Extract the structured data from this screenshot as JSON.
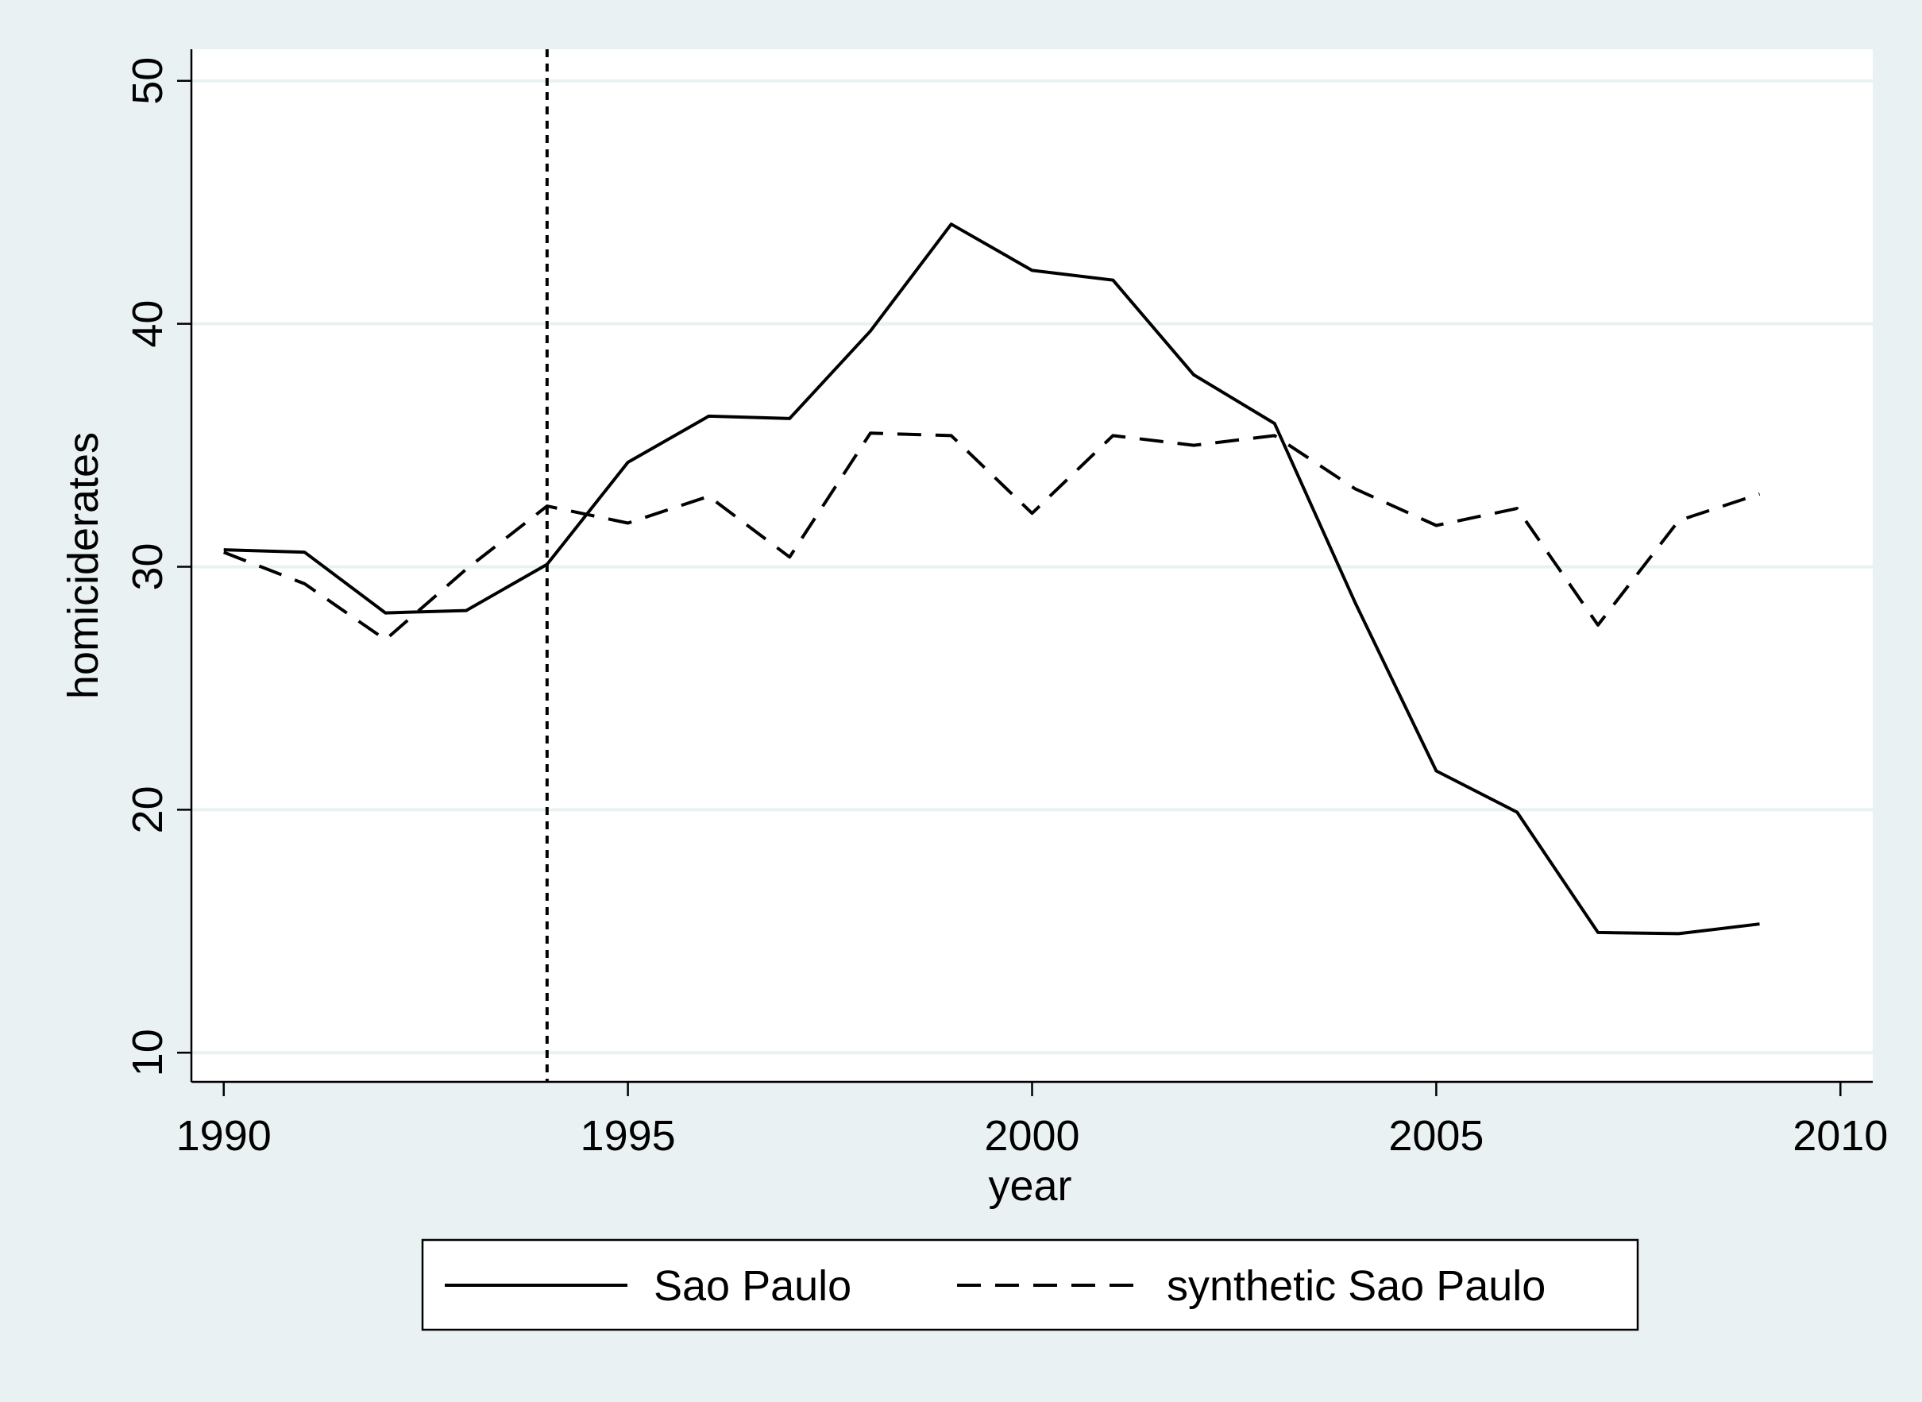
{
  "chart_data": {
    "type": "line",
    "title": "",
    "xlabel": "year",
    "ylabel": "homiciderates",
    "xlim": [
      1989.6,
      2010.4
    ],
    "ylim": [
      8.8,
      51.3
    ],
    "x_ticks": [
      1990,
      1995,
      2000,
      2005,
      2010
    ],
    "y_ticks": [
      10,
      20,
      30,
      40,
      50
    ],
    "grid": "horizontal",
    "legend_placement": "bottom",
    "reference_line": {
      "x": 1994,
      "style": "dotted"
    },
    "x": [
      1990,
      1991,
      1992,
      1993,
      1994,
      1995,
      1996,
      1997,
      1998,
      1999,
      2000,
      2001,
      2002,
      2003,
      2004,
      2005,
      2006,
      2007,
      2008,
      2009
    ],
    "series": [
      {
        "name": "Sao Paulo",
        "line_style": "solid",
        "values": [
          30.7,
          30.6,
          28.1,
          28.2,
          30.1,
          34.3,
          36.2,
          36.1,
          39.7,
          44.1,
          42.2,
          41.8,
          37.9,
          35.9,
          28.5,
          21.6,
          19.9,
          14.95,
          14.9,
          15.3
        ]
      },
      {
        "name": "synthetic Sao Paulo",
        "line_style": "dashed",
        "values": [
          30.6,
          29.3,
          27.0,
          29.9,
          32.5,
          31.8,
          32.9,
          30.4,
          35.5,
          35.4,
          32.2,
          35.4,
          35.0,
          35.4,
          33.2,
          31.7,
          32.4,
          27.6,
          31.9,
          33.0
        ]
      }
    ],
    "colors": {
      "background": "#eaf1f3",
      "plot_background": "#ffffff",
      "gridline": "#eaf1f3",
      "line": "#000000"
    }
  }
}
